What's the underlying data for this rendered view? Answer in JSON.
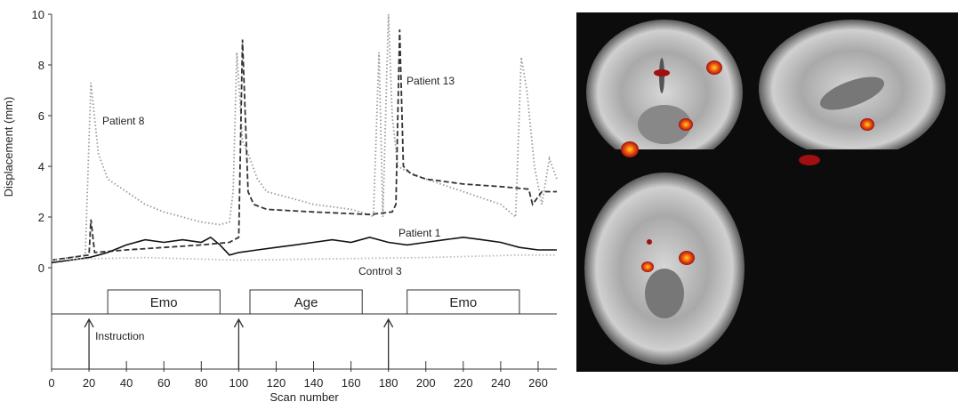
{
  "chart_data": {
    "type": "line",
    "y_label": "Displacement (mm)",
    "x_label": "Scan number",
    "xlim": [
      0,
      270
    ],
    "xticks": [
      0,
      20,
      40,
      60,
      80,
      100,
      120,
      140,
      160,
      180,
      200,
      220,
      240,
      260
    ],
    "ylim": [
      -4,
      10
    ],
    "yticks": [
      0,
      2,
      4,
      6,
      8,
      10
    ],
    "series": [
      {
        "name": "Patient 8",
        "color": "#9a9a9a",
        "style": "dotted",
        "x": [
          0,
          18,
          21,
          25,
          30,
          40,
          50,
          60,
          70,
          80,
          90,
          95,
          97,
          99,
          102,
          105,
          110,
          115,
          125,
          140,
          160,
          170,
          172,
          175,
          177,
          180,
          182,
          185,
          190,
          200,
          220,
          240,
          248,
          251,
          254,
          258,
          262,
          266,
          270
        ],
        "values": [
          0.3,
          0.5,
          7.3,
          4.5,
          3.5,
          3,
          2.5,
          2.2,
          2,
          1.8,
          1.7,
          1.8,
          3,
          8.5,
          5,
          4.5,
          3.5,
          3,
          2.8,
          2.5,
          2.3,
          2.1,
          2,
          8.5,
          2,
          10,
          6,
          4,
          3.8,
          3.5,
          3,
          2.5,
          2,
          8.3,
          7,
          4,
          2.5,
          4.3,
          3.5
        ]
      },
      {
        "name": "Patient 13",
        "color": "#333333",
        "style": "dashed",
        "x": [
          0,
          20,
          21,
          23,
          40,
          60,
          80,
          95,
          100,
          102,
          105,
          108,
          115,
          140,
          170,
          182,
          184,
          186,
          188,
          192,
          200,
          220,
          240,
          255,
          257,
          262,
          270
        ],
        "values": [
          0.3,
          0.5,
          1.9,
          0.6,
          0.7,
          0.8,
          0.9,
          1,
          1.2,
          9,
          3,
          2.5,
          2.3,
          2.2,
          2.1,
          2.2,
          2.5,
          9.4,
          4,
          3.7,
          3.5,
          3.3,
          3.2,
          3.1,
          2.5,
          3,
          3
        ]
      },
      {
        "name": "Patient 1",
        "color": "#111111",
        "style": "solid",
        "x": [
          0,
          10,
          20,
          25,
          30,
          40,
          50,
          60,
          70,
          80,
          85,
          90,
          95,
          100,
          110,
          120,
          130,
          140,
          150,
          160,
          170,
          180,
          190,
          200,
          210,
          220,
          230,
          240,
          250,
          260,
          270
        ],
        "values": [
          0.2,
          0.3,
          0.4,
          0.5,
          0.6,
          0.9,
          1.1,
          1,
          1.1,
          1,
          1.2,
          0.9,
          0.5,
          0.6,
          0.7,
          0.8,
          0.9,
          1,
          1.1,
          1,
          1.2,
          1,
          0.9,
          1,
          1.1,
          1.2,
          1.1,
          1,
          0.8,
          0.7,
          0.7
        ]
      },
      {
        "name": "Control 3",
        "color": "#bbbbbb",
        "style": "dotted",
        "x": [
          0,
          20,
          50,
          100,
          150,
          200,
          250,
          270
        ],
        "values": [
          0.3,
          0.35,
          0.4,
          0.3,
          0.35,
          0.4,
          0.5,
          0.5
        ]
      }
    ],
    "blocks": [
      {
        "label": "Emo",
        "start": 30,
        "end": 90
      },
      {
        "label": "Age",
        "start": 106,
        "end": 166
      },
      {
        "label": "Emo",
        "start": 190,
        "end": 250
      }
    ],
    "instruction_label": "Instruction",
    "instruction_scans": [
      20,
      100,
      180
    ]
  }
}
